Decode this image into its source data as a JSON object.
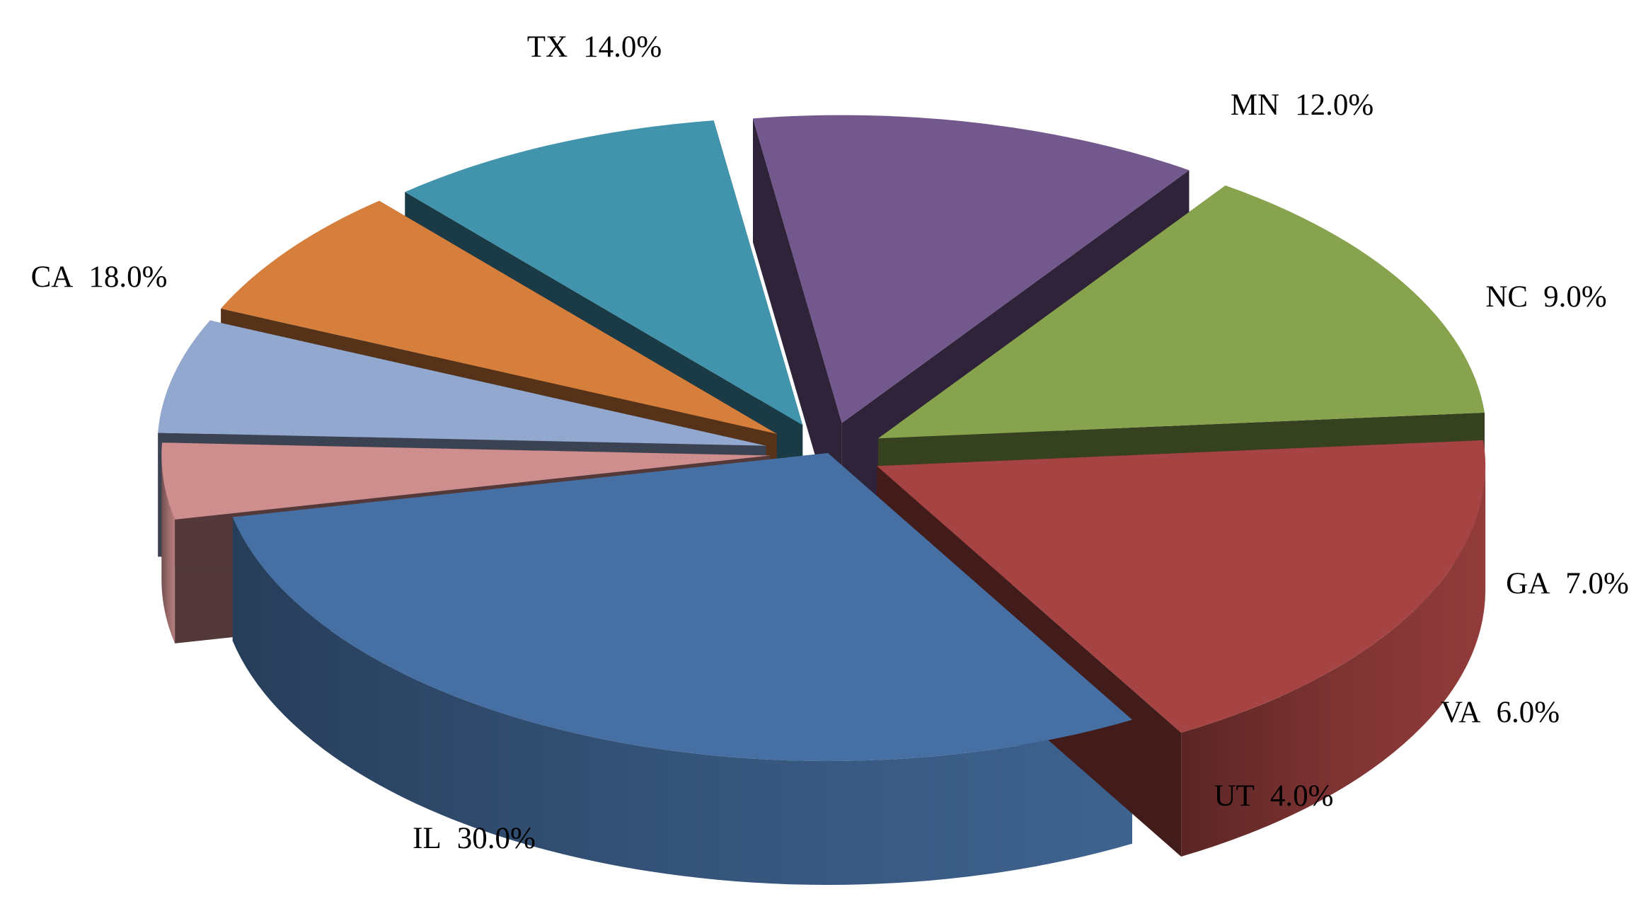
{
  "chart_data": {
    "type": "pie",
    "title": "",
    "legend": "none",
    "label_format": "category-percent",
    "slices": [
      {
        "label": "IL",
        "value": 30.0,
        "display": "30.0%",
        "color": "#4670A3"
      },
      {
        "label": "UT",
        "value": 4.0,
        "display": "4.0%",
        "color": "#CF8E8E"
      },
      {
        "label": "VA",
        "value": 6.0,
        "display": "6.0%",
        "color": "#93A8CF"
      },
      {
        "label": "GA",
        "value": 7.0,
        "display": "7.0%",
        "color": "#D67F3C"
      },
      {
        "label": "NC",
        "value": 9.0,
        "display": "9.0%",
        "color": "#4294AC"
      },
      {
        "label": "MN",
        "value": 12.0,
        "display": "12.0%",
        "color": "#72588D"
      },
      {
        "label": "TX",
        "value": 14.0,
        "display": "14.0%",
        "color": "#87A34D"
      },
      {
        "label": "CA",
        "value": 18.0,
        "display": "18.0%",
        "color": "#A64443"
      }
    ]
  }
}
